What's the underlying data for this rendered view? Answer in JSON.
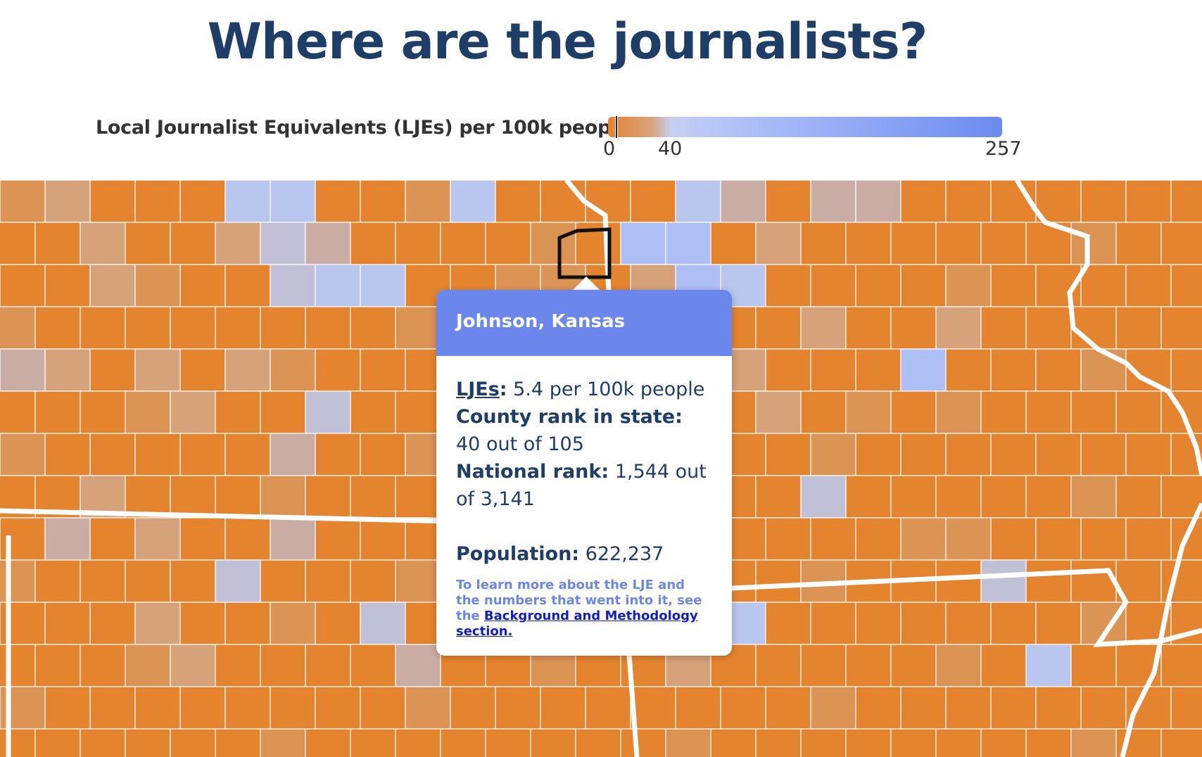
{
  "page": {
    "title": "Where are the journalists?"
  },
  "legend": {
    "label": "Local Journalist Equivalents (LJEs) per 100k people",
    "ticks": [
      "0",
      "40",
      "257"
    ],
    "colors": {
      "low": "#e5822f",
      "mid": "#c6cff2",
      "high": "#6b8bf0"
    }
  },
  "map": {
    "colors": {
      "orange": "#e5842f",
      "light_orange": "#dc9455",
      "tan": "#d6a27a",
      "mauve": "#c9ada4",
      "grey_lavender": "#c0c0d6",
      "light_blue": "#b9c6ee",
      "blue": "#aebff6",
      "state_border": "#ffffff",
      "highlight_border": "#111111"
    }
  },
  "tooltip": {
    "county": "Johnson, Kansas",
    "ljes_label": "LJEs",
    "ljes_value": "5.4 per 100k people",
    "county_rank_label": "County rank in state:",
    "county_rank_value": "40 out of 105",
    "national_rank_label": "National rank:",
    "national_rank_value": "1,544 out of 3,141",
    "population_label": "Population:",
    "population_value": "622,237",
    "note_text": "To learn more about the LJE and the numbers that went into it, see the",
    "note_link": "Background and Methodology section."
  }
}
